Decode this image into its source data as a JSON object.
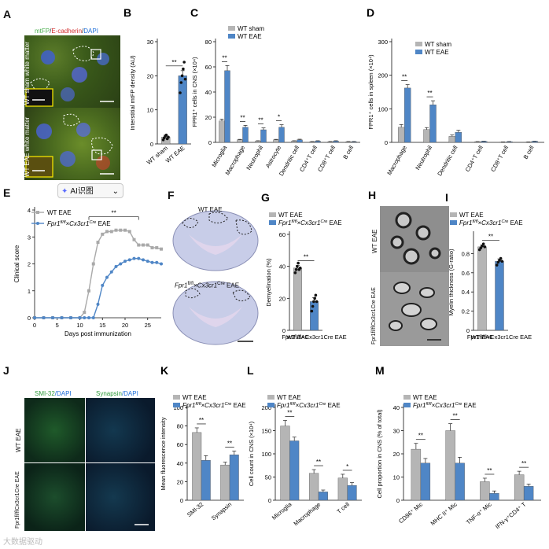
{
  "ui": {
    "ai_button_label": "AI识图",
    "ai_button_chevron": "⌄",
    "ai_button_icon": "sparkle-icon",
    "watermark": "大数据驱动"
  },
  "panels": {
    "A": {
      "letter": "A",
      "legend_mtfp": "mtFP",
      "legend_ecad": "E-cadherin",
      "legend_dapi": "DAPI",
      "sham_label": "WT sham",
      "sham_sub": "white matter",
      "eae_label": "WT EAE",
      "eae_sub": "white matter"
    },
    "F": {
      "letter": "F",
      "top_label": "WT EAE",
      "bottom_label_a": "Fpr1",
      "bottom_label_sup": "fl/fl",
      "bottom_label_b": "×Cx3cr1",
      "bottom_label_sup2": "Cre",
      "bottom_label_c": " EAE"
    },
    "H": {
      "letter": "H",
      "top_label": "WT EAE",
      "bottom_label": "Fpr1fl/flCx3cr1Cre EAE"
    },
    "J": {
      "letter": "J",
      "legend_left_a": "SMI-32",
      "legend_left_b": "/DAPI",
      "legend_right_a": "Synapsin",
      "legend_right_b": "/DAPI",
      "row1": "WT EAE",
      "row2": "Fpr1fl/flCx3cr1Cre EAE"
    }
  },
  "chart_data": [
    {
      "id": "B",
      "letter": "B",
      "type": "bar",
      "title": "",
      "ylabel": "Interstitial mtFP density (AU)",
      "categories": [
        "WT sham",
        "WT EAE"
      ],
      "values": [
        2,
        20
      ],
      "errors": [
        0.6,
        1.5
      ],
      "colors": [
        "#b5b5b5",
        "#4f86c6"
      ],
      "ylim": [
        0,
        30
      ],
      "yticks": [
        0,
        10,
        20,
        30
      ],
      "significance": [
        {
          "from": 0,
          "to": 1,
          "label": "**"
        }
      ],
      "points": [
        [
          1.2,
          1.8,
          2.3,
          2.6,
          1.5,
          2.0
        ],
        [
          15,
          18,
          20,
          22,
          24,
          19
        ]
      ]
    },
    {
      "id": "C",
      "letter": "C",
      "type": "bar",
      "ylabel": "FPR1⁺ cells in CNS (×10⁴)",
      "categories": [
        "Microglia",
        "Macrophage",
        "Neutrophil",
        "Astrocyte",
        "Dendritic cell",
        "CD4⁺T cell",
        "CD8⁺T cell",
        "B cell"
      ],
      "series": [
        {
          "name": "WT sham",
          "color": "#b5b5b5",
          "values": [
            17,
            2,
            1,
            2,
            1,
            0.5,
            0.5,
            0.5
          ],
          "errors": [
            1.5,
            0.4,
            0.3,
            0.4,
            0.3,
            0.2,
            0.2,
            0.2
          ]
        },
        {
          "name": "WT EAE",
          "color": "#4f86c6",
          "values": [
            57,
            12,
            10,
            12,
            2,
            1,
            1,
            0.5
          ],
          "errors": [
            4,
            1.5,
            1.5,
            2,
            0.5,
            0.3,
            0.3,
            0.2
          ]
        }
      ],
      "ylim": [
        0,
        80
      ],
      "yticks": [
        0,
        20,
        40,
        60,
        80
      ],
      "significance": [
        {
          "category": 0,
          "label": "**"
        },
        {
          "category": 1,
          "label": "**"
        },
        {
          "category": 2,
          "label": "**"
        },
        {
          "category": 3,
          "label": "*"
        }
      ]
    },
    {
      "id": "D",
      "letter": "D",
      "type": "bar",
      "ylabel": "FPR1⁺ cells in spleen (×10⁴)",
      "categories": [
        "Macrophage",
        "Neutrophil",
        "Dendritic cell",
        "CD4⁺T cell",
        "CD8⁺T cell",
        "B cell"
      ],
      "series": [
        {
          "name": "WT sham",
          "color": "#b5b5b5",
          "values": [
            45,
            38,
            18,
            2,
            1,
            1
          ],
          "errors": [
            8,
            6,
            4,
            0.5,
            0.4,
            0.4
          ]
        },
        {
          "name": "WT EAE",
          "color": "#4f86c6",
          "values": [
            162,
            112,
            30,
            3,
            2,
            3
          ],
          "errors": [
            10,
            12,
            6,
            0.6,
            0.5,
            0.6
          ]
        }
      ],
      "ylim": [
        0,
        300
      ],
      "yticks": [
        0,
        100,
        200,
        300
      ],
      "significance": [
        {
          "category": 0,
          "label": "**"
        },
        {
          "category": 1,
          "label": "**"
        }
      ]
    },
    {
      "id": "E",
      "letter": "E",
      "type": "line",
      "xlabel": "Days post immunization",
      "ylabel": "Clinical score",
      "x": [
        0,
        2,
        4,
        6,
        8,
        10,
        11,
        12,
        13,
        14,
        15,
        16,
        17,
        18,
        19,
        20,
        21,
        22,
        23,
        24,
        25,
        26,
        27,
        28
      ],
      "series": [
        {
          "name": "WT EAE",
          "color": "#a9a9a9",
          "values": [
            0,
            0,
            0,
            0,
            0,
            0,
            0.2,
            1.0,
            2.0,
            2.8,
            3.1,
            3.2,
            3.2,
            3.25,
            3.25,
            3.25,
            3.2,
            2.9,
            2.7,
            2.7,
            2.7,
            2.6,
            2.6,
            2.55
          ]
        },
        {
          "name": "Fpr1fl/fl×Cx3cr1Cre EAE",
          "color": "#4f86c6",
          "values": [
            0,
            0,
            0,
            0,
            0,
            0,
            0,
            0,
            0,
            0.5,
            1.2,
            1.5,
            1.7,
            1.9,
            2.0,
            2.1,
            2.15,
            2.2,
            2.2,
            2.15,
            2.1,
            2.05,
            2.05,
            2.0
          ]
        }
      ],
      "legend_a": "Fpr1",
      "legend_sup": "fl/fl",
      "legend_b": "×Cx3cr1",
      "legend_sup2": "Cre",
      "legend_c": " EAE",
      "xlim": [
        0,
        28
      ],
      "ylim": [
        0,
        4
      ],
      "xticks": [
        0,
        5,
        10,
        15,
        20,
        25
      ],
      "yticks": [
        0,
        1,
        2,
        3,
        4
      ],
      "significance": {
        "from": 12,
        "to": 23,
        "label": "**"
      }
    },
    {
      "id": "G",
      "letter": "G",
      "type": "bar",
      "ylabel": "Demyelination (%)",
      "categories": [
        "WT EAE",
        "Fpr1fl/fl×Cx3cr1Cre EAE"
      ],
      "values": [
        39,
        18
      ],
      "errors": [
        1.5,
        2.5
      ],
      "colors": [
        "#b5b5b5",
        "#4f86c6"
      ],
      "ylim": [
        0,
        60
      ],
      "yticks": [
        0,
        20,
        40,
        60
      ],
      "legend_a": "Fpr1",
      "legend_sup": "fl/fl",
      "legend_b": "×Cx3cr1",
      "legend_sup2": "Cre",
      "legend_c": " EAE",
      "significance": [
        {
          "from": 0,
          "to": 1,
          "label": "**"
        }
      ],
      "points": [
        [
          36,
          38,
          40,
          42,
          38,
          39
        ],
        [
          12,
          15,
          18,
          20,
          22,
          18
        ]
      ]
    },
    {
      "id": "I",
      "letter": "I",
      "type": "bar",
      "ylabel": "Myelin thickness (G-ratio)",
      "categories": [
        "WT EAE",
        "Fpr1fl/fl×Cx3cr1Cre EAE"
      ],
      "values": [
        0.87,
        0.72
      ],
      "errors": [
        0.02,
        0.025
      ],
      "colors": [
        "#b5b5b5",
        "#4f86c6"
      ],
      "ylim": [
        0,
        1.0
      ],
      "yticks": [
        0,
        0.2,
        0.4,
        0.6,
        0.8
      ],
      "legend_a": "Fpr1",
      "legend_sup": "fl/fl",
      "legend_b": "×Cx3cr1",
      "legend_sup2": "Cre",
      "legend_c": " EAE",
      "significance": [
        {
          "from": 0,
          "to": 1,
          "label": "**"
        }
      ],
      "points": [
        [
          0.84,
          0.86,
          0.88,
          0.9,
          0.87
        ],
        [
          0.68,
          0.71,
          0.73,
          0.75,
          0.72
        ]
      ]
    },
    {
      "id": "K",
      "letter": "K",
      "type": "bar",
      "ylabel": "Mean fluorescence intensity",
      "categories": [
        "SMI-32",
        "Synapsin"
      ],
      "series": [
        {
          "name": "WT EAE",
          "color": "#b5b5b5",
          "values": [
            73,
            38
          ],
          "errors": [
            5,
            3
          ]
        },
        {
          "name": "Fpr1fl/fl×Cx3cr1Cre EAE",
          "color": "#4f86c6",
          "values": [
            43,
            49
          ],
          "errors": [
            5,
            4
          ]
        }
      ],
      "legend_a": "Fpr1",
      "legend_sup": "fl/fl",
      "legend_b": "×Cx3cr1",
      "legend_sup2": "Cre",
      "legend_c": " EAE",
      "ylim": [
        0,
        100
      ],
      "yticks": [
        0,
        20,
        40,
        60,
        80,
        100
      ],
      "significance": [
        {
          "category": 0,
          "label": "**"
        },
        {
          "category": 1,
          "label": "**"
        }
      ]
    },
    {
      "id": "L",
      "letter": "L",
      "type": "bar",
      "ylabel": "Cell count in CNS (×10⁴)",
      "categories": [
        "Microglia",
        "Macrophage",
        "T cell"
      ],
      "series": [
        {
          "name": "WT EAE",
          "color": "#b5b5b5",
          "values": [
            160,
            58,
            48
          ],
          "errors": [
            12,
            8,
            8
          ]
        },
        {
          "name": "Fpr1fl/fl×Cx3cr1Cre EAE",
          "color": "#4f86c6",
          "values": [
            128,
            18,
            32
          ],
          "errors": [
            8,
            4,
            6
          ]
        }
      ],
      "legend_a": "Fpr1",
      "legend_sup": "fl/fl",
      "legend_b": "×Cx3cr1",
      "legend_sup2": "Cre",
      "legend_c": " EAE",
      "ylim": [
        0,
        200
      ],
      "yticks": [
        0,
        50,
        100,
        150,
        200
      ],
      "significance": [
        {
          "category": 0,
          "label": "**"
        },
        {
          "category": 1,
          "label": "**"
        },
        {
          "category": 2,
          "label": "*"
        }
      ]
    },
    {
      "id": "M",
      "letter": "M",
      "type": "bar",
      "ylabel": "Cell proportion in CNS (% of total)",
      "categories": [
        "CD86⁺ Mic",
        "MHC II⁺ Mic",
        "TNF-α⁺ Mic",
        "IFN-γ⁺CD4⁺ T"
      ],
      "series": [
        {
          "name": "WT EAE",
          "color": "#b5b5b5",
          "values": [
            22,
            30,
            8,
            11
          ],
          "errors": [
            2.5,
            3,
            1.5,
            1.5
          ]
        },
        {
          "name": "Fpr1fl/fl×Cx3cr1Cre EAE",
          "color": "#4f86c6",
          "values": [
            16,
            16,
            3,
            6
          ],
          "errors": [
            2,
            2.5,
            1,
            1
          ]
        }
      ],
      "legend_a": "Fpr1",
      "legend_sup": "fl/fl",
      "legend_b": "×Cx3cr1",
      "legend_sup2": "Cre",
      "legend_c": " EAE",
      "ylim": [
        0,
        40
      ],
      "yticks": [
        0,
        10,
        20,
        30,
        40
      ],
      "significance": [
        {
          "category": 0,
          "label": "**"
        },
        {
          "category": 1,
          "label": "**"
        },
        {
          "category": 2,
          "label": "**"
        },
        {
          "category": 3,
          "label": "**"
        }
      ]
    }
  ]
}
